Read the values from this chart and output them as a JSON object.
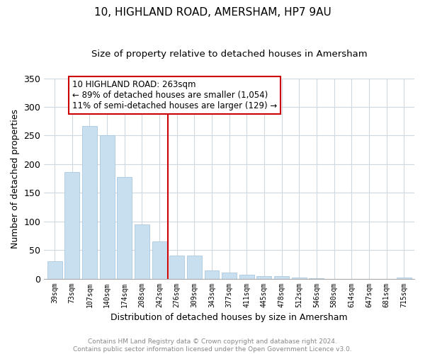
{
  "title": "10, HIGHLAND ROAD, AMERSHAM, HP7 9AU",
  "subtitle": "Size of property relative to detached houses in Amersham",
  "xlabel": "Distribution of detached houses by size in Amersham",
  "ylabel": "Number of detached properties",
  "bar_labels": [
    "39sqm",
    "73sqm",
    "107sqm",
    "140sqm",
    "174sqm",
    "208sqm",
    "242sqm",
    "276sqm",
    "309sqm",
    "343sqm",
    "377sqm",
    "411sqm",
    "445sqm",
    "478sqm",
    "512sqm",
    "546sqm",
    "580sqm",
    "614sqm",
    "647sqm",
    "681sqm",
    "715sqm"
  ],
  "bar_values": [
    30,
    186,
    267,
    251,
    178,
    95,
    65,
    40,
    40,
    14,
    10,
    7,
    4,
    4,
    2,
    1,
    0,
    0,
    0,
    0,
    2
  ],
  "bar_color": "#c8dff0",
  "bar_edge_color": "#aac8e0",
  "vline_x": 6.5,
  "vline_color": "#cc0000",
  "annotation_line1": "10 HIGHLAND ROAD: 263sqm",
  "annotation_line2": "← 89% of detached houses are smaller (1,054)",
  "annotation_line3": "11% of semi-detached houses are larger (129) →",
  "annotation_box_color": "#ffffff",
  "annotation_box_edge": "#cc0000",
  "ylim": [
    0,
    350
  ],
  "yticks": [
    0,
    50,
    100,
    150,
    200,
    250,
    300,
    350
  ],
  "footer_line1": "Contains HM Land Registry data © Crown copyright and database right 2024.",
  "footer_line2": "Contains public sector information licensed under the Open Government Licence v3.0.",
  "background_color": "#ffffff",
  "grid_color": "#d0d8e0"
}
